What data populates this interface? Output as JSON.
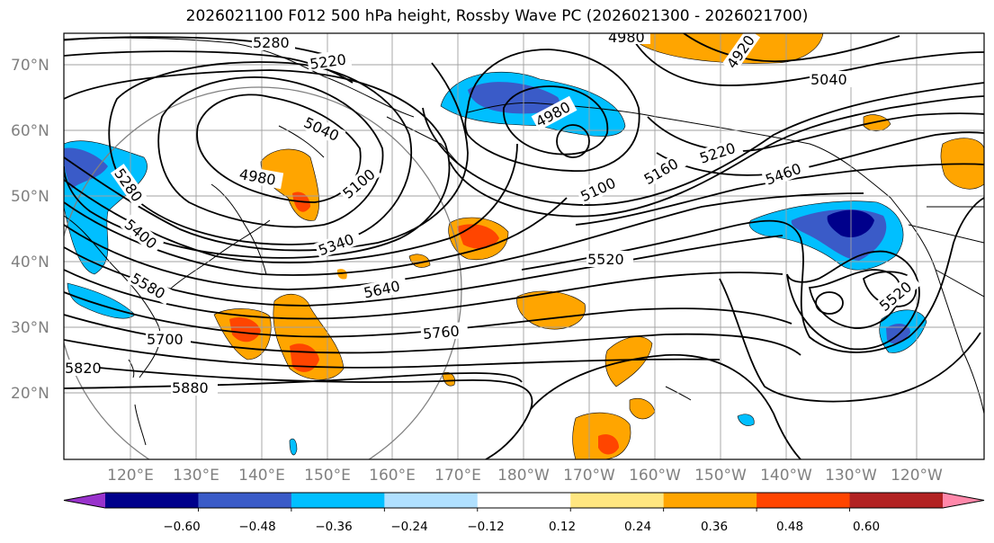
{
  "title": "2026021100 F012 500 hPa height, Rossby Wave PC (2026021300 - 2026021700)",
  "map": {
    "latitude_labels": [
      "70°N",
      "60°N",
      "50°N",
      "40°N",
      "30°N",
      "20°N"
    ],
    "longitude_labels": [
      "120°E",
      "130°E",
      "140°E",
      "150°E",
      "160°E",
      "170°E",
      "180°W",
      "170°W",
      "160°W",
      "150°W",
      "140°W",
      "130°W",
      "120°W"
    ],
    "height_contour_labels": [
      "5280",
      "5220",
      "5040",
      "4980",
      "5100",
      "5280",
      "5400",
      "5340",
      "5580",
      "5640",
      "5700",
      "5760",
      "5820",
      "5880",
      "4980",
      "4920",
      "4980",
      "5040",
      "5100",
      "5160",
      "5220",
      "5460",
      "5520",
      "5520"
    ]
  },
  "colorbar": {
    "colors": [
      "#9932cc",
      "#00008b",
      "#3a5bc8",
      "#00bfff",
      "#b0e0ff",
      "#ffffff",
      "#ffe680",
      "#ffa500",
      "#ff4500",
      "#b22222",
      "#ff88aa"
    ],
    "tick_labels": [
      "−0.60",
      "−0.48",
      "−0.36",
      "−0.24",
      "−0.12",
      "0.12",
      "0.24",
      "0.36",
      "0.48",
      "0.60"
    ]
  }
}
